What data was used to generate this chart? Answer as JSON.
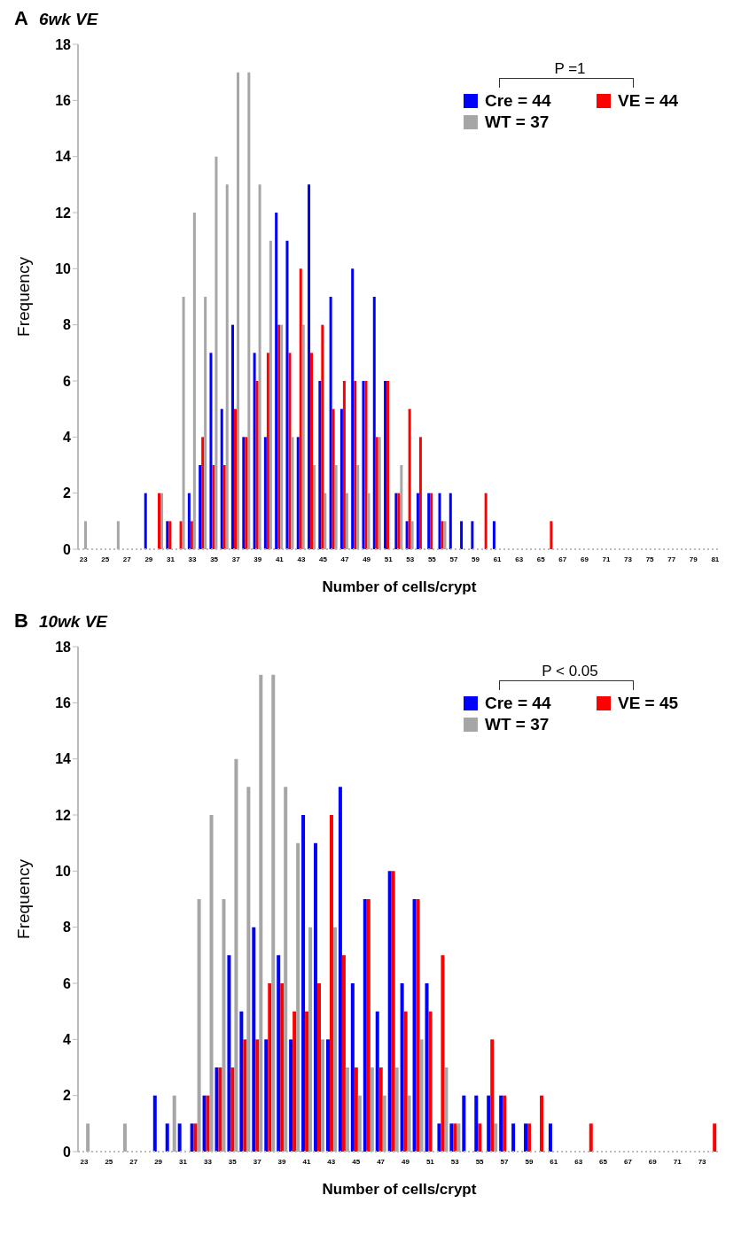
{
  "chart_data": [
    {
      "type": "bar",
      "title": "A 6wk VE",
      "xlabel": "Number of cells/crypt",
      "ylabel": "Frequency",
      "annotations": [
        "P =1"
      ],
      "legend": "top right",
      "ylim": [
        0,
        18
      ],
      "yticks": [
        0,
        2,
        4,
        6,
        8,
        10,
        12,
        14,
        16,
        18
      ],
      "categories": [
        "23",
        null,
        "25",
        null,
        "27",
        null,
        "29",
        null,
        "31",
        null,
        "33",
        null,
        "35",
        null,
        "37",
        null,
        "39",
        null,
        "41",
        null,
        "43",
        null,
        "45",
        null,
        "47",
        null,
        "49",
        null,
        "51",
        null,
        "53",
        null,
        "55",
        null,
        "57",
        null,
        "59",
        null,
        "61",
        null,
        "63",
        null,
        "65",
        null,
        "67",
        null,
        "69",
        null,
        "71",
        null,
        "73",
        null,
        "75",
        null,
        "77",
        null,
        "79",
        null,
        "81"
      ],
      "series": [
        {
          "name": "Cre = 44",
          "color": "#0000ff",
          "values": [
            0,
            0,
            0,
            0,
            0,
            0,
            2,
            0,
            1,
            0,
            2,
            3,
            7,
            5,
            8,
            4,
            7,
            4,
            12,
            11,
            4,
            13,
            6,
            9,
            5,
            10,
            6,
            9,
            6,
            2,
            1,
            2,
            2,
            2,
            2,
            1,
            1,
            0,
            1,
            0,
            0,
            0,
            0,
            0,
            0,
            0,
            0,
            0,
            0,
            0,
            0,
            0,
            0,
            0,
            0,
            0,
            0,
            0,
            0
          ]
        },
        {
          "name": "VE = 44",
          "color": "#ff0000",
          "values": [
            0,
            0,
            0,
            0,
            0,
            0,
            0,
            2,
            1,
            1,
            1,
            4,
            3,
            3,
            5,
            4,
            6,
            7,
            8,
            7,
            10,
            7,
            8,
            5,
            6,
            6,
            6,
            4,
            6,
            2,
            5,
            4,
            2,
            1,
            0,
            0,
            0,
            2,
            0,
            0,
            0,
            0,
            0,
            1,
            0,
            0,
            0,
            0,
            0,
            0,
            0,
            0,
            0,
            0,
            0,
            0,
            0,
            0,
            0
          ]
        },
        {
          "name": "WT = 37",
          "color": "#a6a6a6",
          "values": [
            1,
            0,
            0,
            1,
            0,
            0,
            0,
            2,
            0,
            9,
            12,
            9,
            14,
            13,
            17,
            17,
            13,
            11,
            8,
            4,
            8,
            3,
            2,
            3,
            2,
            3,
            2,
            4,
            0,
            3,
            1,
            0,
            0,
            1,
            0,
            0,
            0,
            0,
            0,
            0,
            0,
            0,
            0,
            0,
            0,
            0,
            0,
            0,
            0,
            0,
            0,
            0,
            0,
            0,
            0,
            0,
            0,
            0,
            0
          ]
        }
      ]
    },
    {
      "type": "bar",
      "title": "B 10wk VE",
      "xlabel": "Number of cells/crypt",
      "ylabel": "Frequency",
      "annotations": [
        "P < 0.05"
      ],
      "legend": "top right",
      "ylim": [
        0,
        18
      ],
      "yticks": [
        0,
        2,
        4,
        6,
        8,
        10,
        12,
        14,
        16,
        18
      ],
      "categories": [
        "23",
        null,
        "25",
        null,
        "27",
        null,
        "29",
        null,
        "31",
        null,
        "33",
        null,
        "35",
        null,
        "37",
        null,
        "39",
        null,
        "41",
        null,
        "43",
        null,
        "45",
        null,
        "47",
        null,
        "49",
        null,
        "51",
        null,
        "53",
        null,
        "55",
        null,
        "57",
        null,
        "59",
        null,
        "61",
        null,
        "63",
        null,
        "65",
        null,
        "67",
        null,
        "69",
        null,
        "71",
        null,
        "73",
        null
      ],
      "series": [
        {
          "name": "Cre = 44",
          "color": "#0000ff",
          "values": [
            0,
            0,
            0,
            0,
            0,
            0,
            2,
            1,
            1,
            1,
            2,
            3,
            7,
            5,
            8,
            4,
            7,
            4,
            12,
            11,
            4,
            13,
            6,
            9,
            5,
            10,
            6,
            9,
            6,
            1,
            1,
            2,
            2,
            2,
            2,
            1,
            1,
            0,
            1,
            0,
            0,
            0,
            0,
            0,
            0,
            0,
            0,
            0,
            0,
            0,
            0,
            0
          ]
        },
        {
          "name": "VE = 45",
          "color": "#ff0000",
          "values": [
            0,
            0,
            0,
            0,
            0,
            0,
            0,
            0,
            0,
            1,
            2,
            3,
            3,
            4,
            4,
            6,
            6,
            5,
            5,
            6,
            12,
            7,
            3,
            9,
            3,
            10,
            5,
            9,
            5,
            7,
            1,
            0,
            1,
            4,
            2,
            0,
            1,
            2,
            0,
            0,
            0,
            1,
            0,
            0,
            0,
            0,
            0,
            0,
            0,
            0,
            0,
            1
          ]
        },
        {
          "name": "WT = 37",
          "color": "#a6a6a6",
          "values": [
            1,
            0,
            0,
            1,
            0,
            0,
            0,
            2,
            0,
            9,
            12,
            9,
            14,
            13,
            17,
            17,
            13,
            11,
            8,
            4,
            8,
            3,
            2,
            3,
            2,
            3,
            2,
            4,
            0,
            3,
            1,
            0,
            0,
            1,
            0,
            0,
            0,
            0,
            0,
            0,
            0,
            0,
            0,
            0,
            0,
            0,
            0,
            0,
            0,
            0,
            0,
            0
          ]
        }
      ]
    }
  ]
}
